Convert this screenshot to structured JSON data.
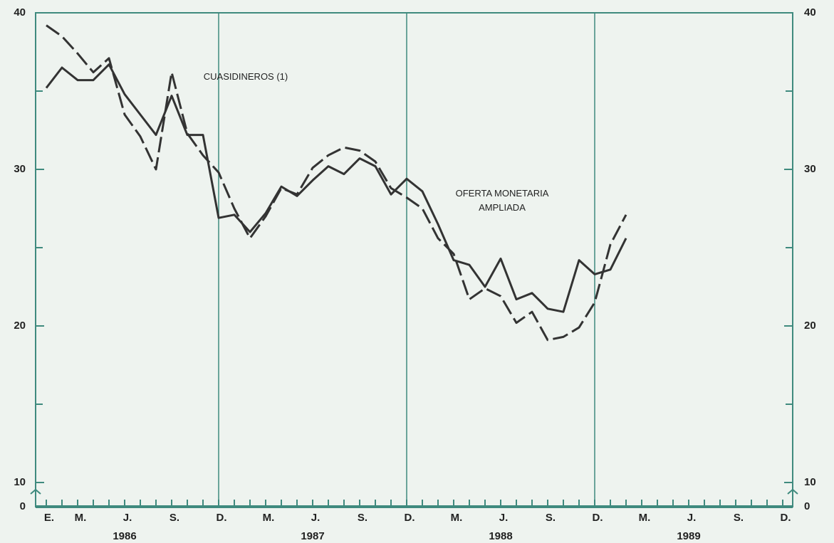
{
  "chart_data": {
    "type": "line",
    "categories": [
      "E.",
      null,
      "M.",
      null,
      null,
      "J.",
      null,
      null,
      "S.",
      null,
      null,
      "D.",
      null,
      null,
      "M.",
      null,
      null,
      "J.",
      null,
      null,
      "S.",
      null,
      null,
      "D.",
      null,
      null,
      "M.",
      null,
      null,
      "J.",
      null,
      null,
      "S.",
      null,
      null,
      "D.",
      null,
      null,
      "M.",
      null,
      null,
      "J.",
      null,
      null,
      "S.",
      null,
      null,
      "D."
    ],
    "years": [
      "1986",
      "1987",
      "1988",
      "1989"
    ],
    "series": [
      {
        "name": "CUASIDINEROS (1)",
        "color": "#333333",
        "dashed": true,
        "values": [
          39.2,
          38.5,
          37.4,
          36.2,
          37.1,
          33.5,
          32.1,
          30.0,
          36.2,
          32.3,
          30.9,
          29.8,
          27.5,
          25.6,
          27.0,
          28.8,
          28.4,
          30.1,
          30.9,
          31.4,
          31.2,
          30.5,
          28.8,
          28.2,
          27.5,
          25.6,
          24.6,
          21.7,
          22.4,
          21.9,
          20.2,
          20.9,
          19.1,
          19.3,
          19.9,
          21.5,
          25.2,
          27.1,
          null,
          null,
          null,
          null,
          null,
          null,
          null,
          null,
          null,
          null
        ]
      },
      {
        "name": "OFERTA MONETARIA AMPLIADA",
        "color": "#333333",
        "dashed": false,
        "values": [
          35.2,
          36.5,
          35.7,
          35.7,
          36.7,
          34.8,
          33.5,
          32.2,
          34.7,
          32.2,
          32.2,
          26.9,
          27.1,
          26.0,
          27.2,
          28.9,
          28.3,
          29.3,
          30.2,
          29.7,
          30.7,
          30.2,
          28.4,
          29.4,
          28.6,
          26.5,
          24.2,
          23.9,
          22.5,
          24.3,
          21.7,
          22.1,
          21.1,
          20.9,
          24.2,
          23.3,
          23.6,
          25.6,
          null,
          null,
          null,
          null,
          null,
          null,
          null,
          null,
          null,
          null
        ]
      }
    ],
    "ylim": [
      10,
      40
    ],
    "yticks": [
      10,
      20,
      30,
      40
    ],
    "yminor": [
      15,
      25,
      35
    ],
    "axis_floor_tick": 0,
    "axis_color": "#3f8a7e"
  }
}
